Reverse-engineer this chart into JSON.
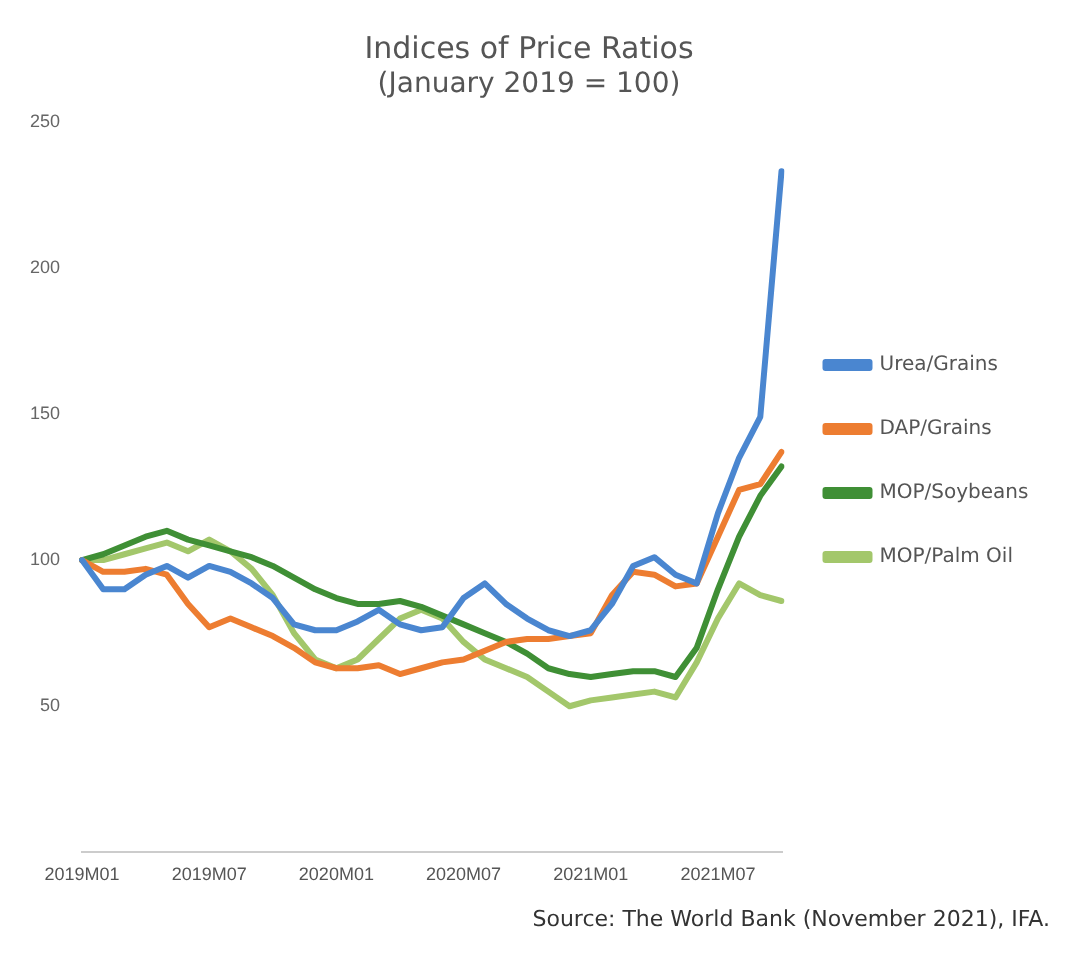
{
  "chart_data": {
    "type": "line",
    "title": "Indices of Price Ratios",
    "subtitle": "(January 2019 = 100)",
    "categories": [
      "2019M01",
      null,
      null,
      null,
      null,
      null,
      "2019M07",
      null,
      null,
      null,
      null,
      null,
      "2020M01",
      null,
      null,
      null,
      null,
      null,
      "2020M07",
      null,
      null,
      null,
      null,
      null,
      "2021M01",
      null,
      null,
      null,
      null,
      null,
      "2021M07",
      null,
      null,
      null
    ],
    "series": [
      {
        "name": "Urea/Grains",
        "color": "#4a86d0",
        "values": [
          100,
          90,
          90,
          95,
          98,
          94,
          98,
          96,
          92,
          87,
          78,
          76,
          76,
          79,
          83,
          78,
          76,
          77,
          87,
          92,
          85,
          80,
          76,
          74,
          76,
          85,
          98,
          101,
          95,
          92,
          116,
          135,
          149,
          233
        ]
      },
      {
        "name": "DAP/Grains",
        "color": "#ed7d31",
        "values": [
          100,
          96,
          96,
          97,
          95,
          85,
          77,
          80,
          77,
          74,
          70,
          65,
          63,
          63,
          64,
          61,
          63,
          65,
          66,
          69,
          72,
          73,
          73,
          74,
          75,
          88,
          96,
          95,
          91,
          92,
          108,
          124,
          126,
          137
        ]
      },
      {
        "name": "MOP/Soybeans",
        "color": "#3f8f35",
        "values": [
          100,
          102,
          105,
          108,
          110,
          107,
          105,
          103,
          101,
          98,
          94,
          90,
          87,
          85,
          85,
          86,
          84,
          81,
          78,
          75,
          72,
          68,
          63,
          61,
          60,
          61,
          62,
          62,
          60,
          70,
          90,
          108,
          122,
          132
        ]
      },
      {
        "name": "MOP/Palm Oil",
        "color": "#a3c76b",
        "values": [
          100,
          100,
          102,
          104,
          106,
          103,
          107,
          103,
          97,
          88,
          75,
          66,
          63,
          66,
          73,
          80,
          83,
          80,
          72,
          66,
          63,
          60,
          55,
          50,
          52,
          53,
          54,
          55,
          53,
          65,
          80,
          92,
          88,
          86
        ]
      }
    ],
    "ylim": [
      0,
      250
    ],
    "yticks": [
      50,
      100,
      150,
      200,
      250
    ],
    "grid": false,
    "legend": "right",
    "marker": "none",
    "line_style": "solid",
    "annotations": [
      "Source: The World Bank (November 2021), IFA."
    ]
  }
}
